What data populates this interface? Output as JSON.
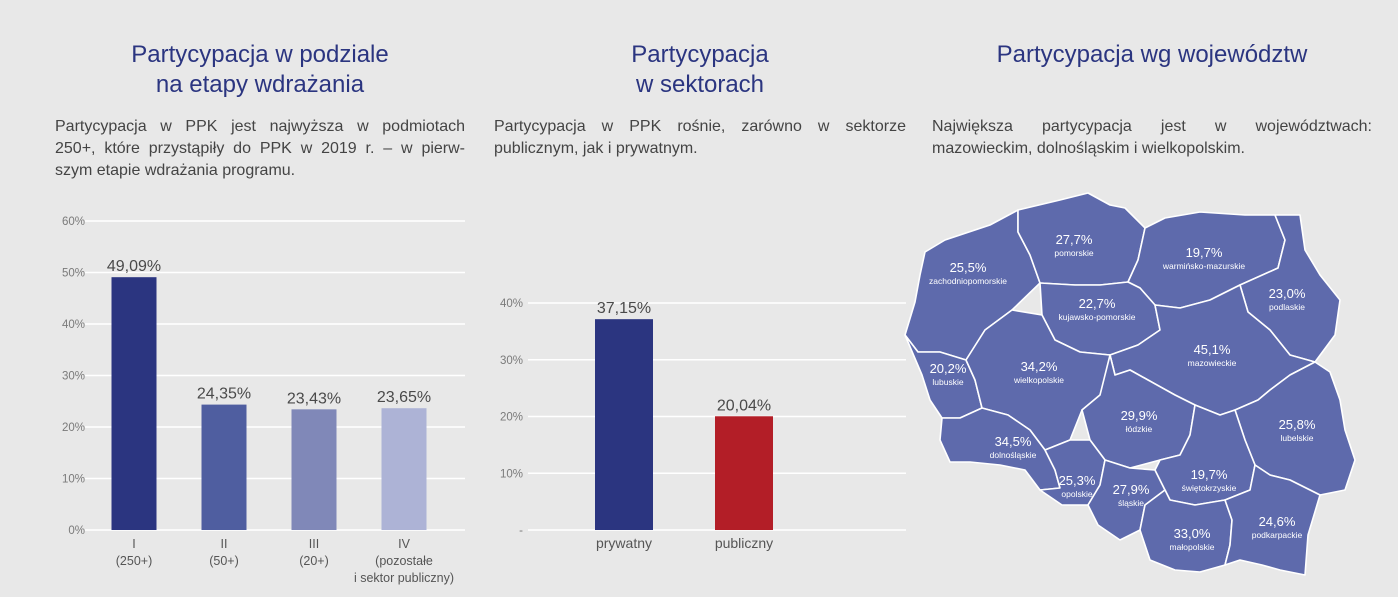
{
  "panels": {
    "stages": {
      "title": [
        "Partycypacja w podziale",
        "na etapy wdrażania"
      ],
      "lead": [
        "Partycypacja w PPK jest najwyższa w podmiotach",
        "250+, które przystąpiły do PPK w 2019 r. – w pierw-",
        "szym etapie wdrażania programu."
      ]
    },
    "sectors": {
      "title": [
        "Partycypacja",
        "w sektorach"
      ],
      "lead": [
        "Partycypacja w PPK rośnie, zarówno w sektorze",
        "publicznym, jak i prywatnym."
      ]
    },
    "regions": {
      "title": [
        "Partycypacja wg województw"
      ],
      "lead": [
        "Największa partycypacja jest w województwach:",
        "mazowieckim, dolnośląskim i wielkopolskim."
      ]
    }
  },
  "chart_data": [
    {
      "type": "bar",
      "categories": [
        [
          "I",
          "(250+)"
        ],
        [
          "II",
          "(50+)"
        ],
        [
          "III",
          "(20+)"
        ],
        [
          "IV",
          "(pozostałe",
          "i sektor publiczny)"
        ]
      ],
      "values": [
        49.09,
        24.35,
        23.43,
        23.65
      ],
      "value_labels": [
        "49,09%",
        "24,35%",
        "23,43%",
        "23,65%"
      ],
      "colors": [
        "#2b3580",
        "#4f5ea0",
        "#8088b8",
        "#adb3d6"
      ],
      "yticks": [
        "0%",
        "10%",
        "20%",
        "30%",
        "40%",
        "50%",
        "60%"
      ],
      "ylim": [
        0,
        60
      ],
      "grid": true
    },
    {
      "type": "bar",
      "categories": [
        [
          "prywatny"
        ],
        [
          "publiczny"
        ]
      ],
      "values": [
        37.15,
        20.04
      ],
      "value_labels": [
        "37,15%",
        "20,04%"
      ],
      "colors": [
        "#2b3580",
        "#b31e27"
      ],
      "yticks": [
        "-",
        "10%",
        "20%",
        "30%",
        "40%"
      ],
      "ylim": [
        0,
        40
      ],
      "grid": true
    },
    {
      "type": "table",
      "map_color": "#5e6aac",
      "regions": [
        {
          "id": "zachodniopomorskie",
          "value": "25,5%",
          "name": "zachodniopomorskie"
        },
        {
          "id": "pomorskie",
          "value": "27,7%",
          "name": "pomorskie"
        },
        {
          "id": "warminsko-mazurskie",
          "value": "19,7%",
          "name": "warmińsko-mazurskie"
        },
        {
          "id": "podlaskie",
          "value": "23,0%",
          "name": "podlaskie"
        },
        {
          "id": "kujawsko-pomorskie",
          "value": "22,7%",
          "name": "kujawsko-pomorskie"
        },
        {
          "id": "lubuskie",
          "value": "20,2%",
          "name": "lubuskie"
        },
        {
          "id": "wielkopolskie",
          "value": "34,2%",
          "name": "wielkopolskie"
        },
        {
          "id": "mazowieckie",
          "value": "45,1%",
          "name": "mazowieckie"
        },
        {
          "id": "lodzkie",
          "value": "29,9%",
          "name": "łódzkie"
        },
        {
          "id": "lubelskie",
          "value": "25,8%",
          "name": "lubelskie"
        },
        {
          "id": "dolnoslaskie",
          "value": "34,5%",
          "name": "dolnośląskie"
        },
        {
          "id": "opolskie",
          "value": "25,3%",
          "name": "opolskie"
        },
        {
          "id": "slaskie",
          "value": "27,9%",
          "name": "śląskie"
        },
        {
          "id": "swietokrzyskie",
          "value": "19,7%",
          "name": "świętokrzyskie"
        },
        {
          "id": "malopolskie",
          "value": "33,0%",
          "name": "małopolskie"
        },
        {
          "id": "podkarpackie",
          "value": "24,6%",
          "name": "podkarpackie"
        }
      ]
    }
  ]
}
